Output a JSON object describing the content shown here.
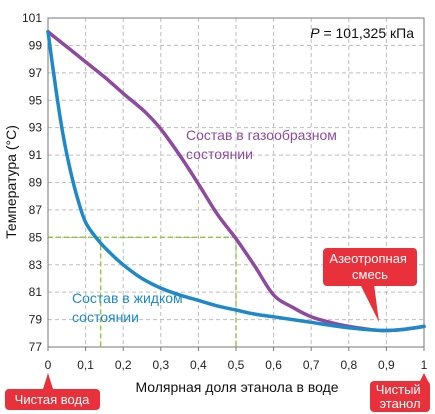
{
  "chart_data": {
    "type": "line",
    "title": "",
    "xlabel": "Молярная доля этанола в воде",
    "ylabel": "Температура (°C)",
    "xlim": [
      0,
      1
    ],
    "ylim": [
      77,
      101
    ],
    "xticks": [
      "0",
      "0,1",
      "0,2",
      "0,3",
      "0,4",
      "0,5",
      "0,6",
      "0,7",
      "0,8",
      "0,9",
      "1"
    ],
    "xtick_values": [
      0,
      0.1,
      0.2,
      0.3,
      0.4,
      0.5,
      0.6,
      0.7,
      0.8,
      0.9,
      1
    ],
    "yticks": [
      "77",
      "79",
      "81",
      "83",
      "85",
      "87",
      "89",
      "91",
      "93",
      "95",
      "97",
      "99",
      "101"
    ],
    "ytick_values": [
      77,
      79,
      81,
      83,
      85,
      87,
      89,
      91,
      93,
      95,
      97,
      99,
      101
    ],
    "grid": "dashed",
    "pressure_label": {
      "variable": "P",
      "rest": " = 101,325 кПа"
    },
    "series": [
      {
        "name": "Состав в газообразном состоянии",
        "label_lines": [
          "Состав в газообразном",
          "состоянии"
        ],
        "color": "#8e4a9e",
        "x": [
          0.0,
          0.05,
          0.1,
          0.15,
          0.2,
          0.26,
          0.3,
          0.35,
          0.4,
          0.45,
          0.5,
          0.55,
          0.6,
          0.65,
          0.7,
          0.75,
          0.8,
          0.85,
          0.89,
          0.95,
          1.0
        ],
        "y": [
          100.0,
          98.9,
          97.8,
          96.7,
          95.5,
          94.1,
          92.9,
          91.0,
          88.9,
          86.7,
          84.9,
          82.9,
          80.8,
          79.9,
          79.2,
          78.8,
          78.5,
          78.3,
          78.2,
          78.3,
          78.5
        ]
      },
      {
        "name": "Состав в жидком состоянии",
        "label_lines": [
          "Состав в жидком",
          "состоянии"
        ],
        "color": "#1e88c8",
        "x": [
          0.0,
          0.02,
          0.04,
          0.06,
          0.08,
          0.1,
          0.13,
          0.16,
          0.2,
          0.25,
          0.3,
          0.35,
          0.4,
          0.45,
          0.5,
          0.55,
          0.6,
          0.7,
          0.8,
          0.89,
          0.95,
          1.0
        ],
        "y": [
          100.0,
          96.0,
          92.5,
          89.8,
          87.7,
          86.1,
          84.9,
          84.0,
          83.0,
          82.0,
          81.3,
          80.8,
          80.4,
          80.0,
          79.7,
          79.4,
          79.2,
          78.8,
          78.4,
          78.2,
          78.3,
          78.5
        ]
      }
    ],
    "guide_lines": [
      {
        "x": 0.14,
        "y": 85
      },
      {
        "x": 0.5,
        "y": 85
      }
    ],
    "azeotrope": {
      "x": 0.89,
      "y": 78.2,
      "label_lines": [
        "Азеотропная",
        "смесь"
      ]
    },
    "end_labels": {
      "left": [
        "Чистая вода"
      ],
      "right": [
        "Чистый",
        "этанол"
      ]
    },
    "colors": {
      "callout": "#e8313a",
      "guide": "#8cc63f",
      "grid": "#bdbdbd"
    }
  }
}
